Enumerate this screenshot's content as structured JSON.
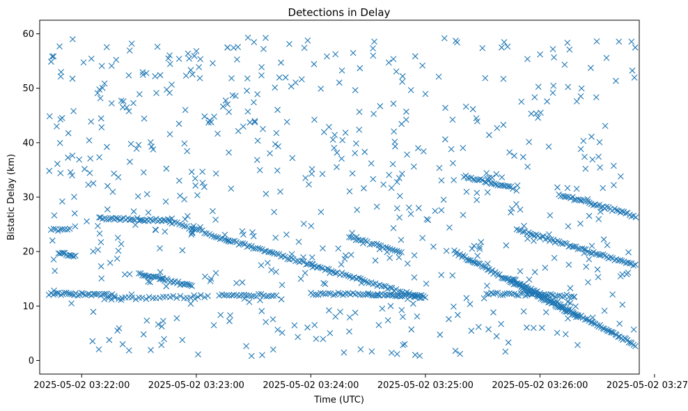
{
  "chart_data": {
    "type": "scatter",
    "title": "Detections in Delay",
    "xlabel": "Time (UTC)",
    "ylabel": "Bistatic Delay (km)",
    "marker": "x",
    "color": "#1f77b4",
    "x_unit": "seconds after 2025-05-02 03:22:00",
    "xlim": [
      -22,
      292
    ],
    "ylim": [
      -2.5,
      62.5
    ],
    "x_ticks": [
      {
        "value": 0,
        "label": "2025-05-02 03:22:00"
      },
      {
        "value": 60,
        "label": "2025-05-02 03:23:00"
      },
      {
        "value": 120,
        "label": "2025-05-02 03:24:00"
      },
      {
        "value": 180,
        "label": "2025-05-02 03:25:00"
      },
      {
        "value": 240,
        "label": "2025-05-02 03:26:00"
      },
      {
        "value": 300,
        "label": "2025-05-02 03:27:00"
      }
    ],
    "y_ticks": [
      {
        "value": 0,
        "label": "0"
      },
      {
        "value": 10,
        "label": "10"
      },
      {
        "value": 20,
        "label": "20"
      },
      {
        "value": 30,
        "label": "30"
      },
      {
        "value": 40,
        "label": "40"
      },
      {
        "value": 50,
        "label": "50"
      },
      {
        "value": 60,
        "label": "60"
      }
    ],
    "tracks": [
      {
        "x0": -17,
        "x1": 17,
        "y0": 12.3,
        "y1": 12.0,
        "step": 1.0
      },
      {
        "x0": 12,
        "x1": 66,
        "y0": 11.3,
        "y1": 11.8,
        "step": 1.8
      },
      {
        "x0": 72,
        "x1": 103,
        "y0": 12.0,
        "y1": 12.0,
        "step": 1.3
      },
      {
        "x0": 120,
        "x1": 150,
        "y0": 12.3,
        "y1": 12.1,
        "step": 1.3
      },
      {
        "x0": 150,
        "x1": 180,
        "y0": 12.2,
        "y1": 11.8,
        "step": 1.0
      },
      {
        "x0": 212,
        "x1": 258,
        "y0": 12.3,
        "y1": 11.9,
        "step": 1.2
      },
      {
        "x0": 9,
        "x1": 46,
        "y0": 26.2,
        "y1": 25.7,
        "step": 1.0
      },
      {
        "x0": 46,
        "x1": 68,
        "y0": 25.5,
        "y1": 23.2,
        "step": 1.3
      },
      {
        "x0": 68,
        "x1": 178,
        "y0": 23.0,
        "y1": 11.5,
        "step": 1.1
      },
      {
        "x0": -16,
        "x1": -6,
        "y0": 24.0,
        "y1": 24.0,
        "step": 1.2
      },
      {
        "x0": -12,
        "x1": -3,
        "y0": 19.8,
        "y1": 19.0,
        "step": 0.8
      },
      {
        "x0": 30,
        "x1": 58,
        "y0": 16.0,
        "y1": 13.6,
        "step": 0.9
      },
      {
        "x0": 140,
        "x1": 168,
        "y0": 22.5,
        "y1": 20.0,
        "step": 1.2
      },
      {
        "x0": 195,
        "x1": 260,
        "y0": 20.0,
        "y1": 8.0,
        "step": 0.8
      },
      {
        "x0": 225,
        "x1": 290,
        "y0": 15.0,
        "y1": 2.8,
        "step": 0.8
      },
      {
        "x0": 228,
        "x1": 290,
        "y0": 24.0,
        "y1": 17.5,
        "step": 1.0
      },
      {
        "x0": 200,
        "x1": 225,
        "y0": 33.8,
        "y1": 31.8,
        "step": 1.0
      },
      {
        "x0": 250,
        "x1": 290,
        "y0": 30.5,
        "y1": 26.5,
        "step": 1.0
      }
    ]
  }
}
